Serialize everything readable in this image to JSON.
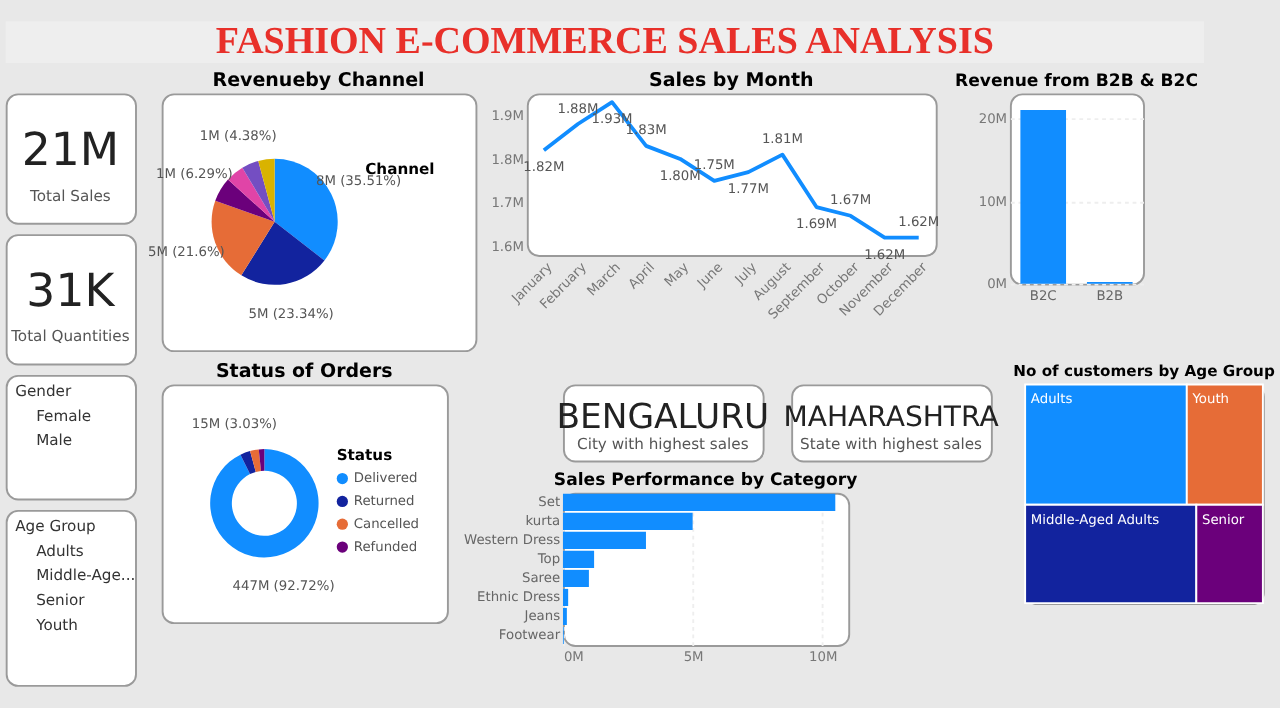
{
  "chart_data": [
    {
      "type": "other",
      "title": "FASHION E-COMMERCE SALES ANALYSIS"
    },
    {
      "type": "other",
      "annotations": [
        "21M",
        "Total Sales"
      ]
    },
    {
      "type": "other",
      "annotations": [
        "31K",
        "Total Quantities"
      ]
    },
    {
      "type": "other",
      "title": "Gender",
      "categories": [
        "Female",
        "Male"
      ]
    },
    {
      "type": "other",
      "title": "Age Group",
      "categories": [
        "Adults",
        "Middle-Age...",
        "Senior",
        "Youth"
      ]
    },
    {
      "type": "pie",
      "title": "Revenueby Channel",
      "legend_title": "Channel",
      "categories": [
        null,
        null,
        null,
        null,
        null,
        null,
        null
      ],
      "values": [
        35.51,
        23.34,
        21.6,
        6.29,
        4.7,
        4.38,
        4.18
      ],
      "colors": [
        "#118dff",
        "#12239e",
        "#e66c37",
        "#6b007b",
        "#e044a7",
        "#744ec2",
        "#d9b300"
      ],
      "value_labels": [
        "8M (35.51%)",
        "5M (23.34%)",
        "5M (21.6%)",
        "1M (6.29%)",
        null,
        "1M (4.38%)",
        null
      ]
    },
    {
      "type": "line",
      "title": "Sales by Month",
      "categories": [
        "January",
        "February",
        "March",
        "April",
        "May",
        "June",
        "July",
        "August",
        "September",
        "October",
        "November",
        "December"
      ],
      "series": [
        {
          "color": "#118dff",
          "values": [
            1.82,
            1.88,
            1.93,
            1.83,
            1.8,
            1.75,
            1.77,
            1.81,
            1.69,
            1.67,
            1.62,
            1.62
          ],
          "value_labels": [
            "1.82M",
            "1.88M",
            "1.93M",
            "1.83M",
            "1.80M",
            "1.75M",
            "1.77M",
            "1.81M",
            "1.69M",
            "1.67M",
            "1.62M",
            "1.62M"
          ]
        }
      ],
      "ylim": [
        1.58,
        1.95
      ],
      "yticks": [
        {
          "value": 1.6,
          "label": "1.6M"
        },
        {
          "value": 1.7,
          "label": "1.7M"
        },
        {
          "value": 1.8,
          "label": "1.8M"
        },
        {
          "value": 1.9,
          "label": "1.9M"
        }
      ],
      "grid": false,
      "marker": "none",
      "line_style": "solid",
      "legend": false
    },
    {
      "type": "bar",
      "title": "Revenue from B2B & B2C",
      "categories": [
        "B2C",
        "B2B"
      ],
      "values": [
        21,
        0.2
      ],
      "color": "#118dff",
      "ylim": [
        0,
        23
      ],
      "yticks": [
        {
          "value": 0,
          "label": "0M"
        },
        {
          "value": 10,
          "label": "10M"
        },
        {
          "value": 20,
          "label": "20M"
        }
      ],
      "grid": "y"
    },
    {
      "type": "donut",
      "title": "Status of Orders",
      "legend_title": "Status",
      "legend": "right",
      "categories": [
        "Delivered",
        "Returned",
        "Cancelled",
        "Refunded"
      ],
      "values": [
        92.72,
        3.03,
        2.6,
        1.65
      ],
      "colors": [
        "#118dff",
        "#12239e",
        "#e66c37",
        "#6b007b"
      ],
      "value_labels": [
        "447M (92.72%)",
        "15M (3.03%)",
        null,
        null
      ]
    },
    {
      "type": "other",
      "annotations": [
        "BENGALURU",
        "City with highest sales"
      ]
    },
    {
      "type": "other",
      "annotations": [
        "MAHARASHTRA",
        "State with highest sales"
      ]
    },
    {
      "type": "bar",
      "orientation": "horizontal",
      "title": "Sales Performance by Category",
      "categories": [
        "Set",
        "kurta",
        "Western Dress",
        "Top",
        "Saree",
        "Ethnic Dress",
        "Jeans",
        "Footwear"
      ],
      "values": [
        10.5,
        5.0,
        3.2,
        1.2,
        1.0,
        0.2,
        0.15,
        0.03
      ],
      "color": "#118dff",
      "xlim": [
        0,
        11
      ],
      "xticks": [
        {
          "value": 0,
          "label": "0M"
        },
        {
          "value": 5,
          "label": "5M"
        },
        {
          "value": 10,
          "label": "10M"
        }
      ],
      "grid": "x"
    },
    {
      "type": "other",
      "title": "No of customers by Age Group",
      "categories": [
        "Adults",
        "Youth",
        "Middle-Aged Adults",
        "Senior"
      ],
      "colors": [
        "#118dff",
        "#e66c37",
        "#12239e",
        "#6b007b"
      ]
    }
  ]
}
